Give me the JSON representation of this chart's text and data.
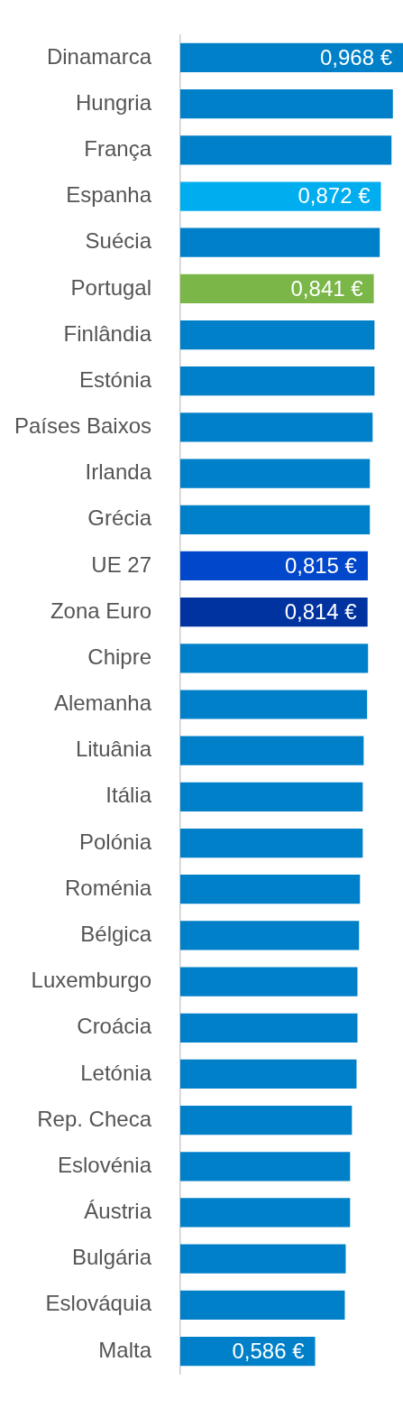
{
  "chart_data": {
    "type": "bar",
    "orientation": "horizontal",
    "categories": [
      "Dinamarca",
      "Hungria",
      "França",
      "Espanha",
      "Suécia",
      "Portugal",
      "Finlândia",
      "Estónia",
      "Países Baixos",
      "Irlanda",
      "Grécia",
      "UE 27",
      "Zona Euro",
      "Chipre",
      "Alemanha",
      "Lituânia",
      "Itália",
      "Polónia",
      "Roménia",
      "Bélgica",
      "Luxemburgo",
      "Croácia",
      "Letónia",
      "Rep. Checa",
      "Eslovénia",
      "Áustria",
      "Bulgária",
      "Eslováquia",
      "Malta"
    ],
    "values": [
      0.968,
      0.924,
      0.918,
      0.872,
      0.867,
      0.841,
      0.844,
      0.844,
      0.836,
      0.824,
      0.824,
      0.815,
      0.814,
      0.816,
      0.812,
      0.797,
      0.793,
      0.793,
      0.781,
      0.777,
      0.77,
      0.77,
      0.766,
      0.746,
      0.738,
      0.738,
      0.719,
      0.715,
      0.586
    ],
    "value_labels": [
      "0,968 €",
      null,
      null,
      "0,872 €",
      null,
      "0,841 €",
      null,
      null,
      null,
      null,
      null,
      "0,815 €",
      "0,814 €",
      null,
      null,
      null,
      null,
      null,
      null,
      null,
      null,
      null,
      null,
      null,
      null,
      null,
      null,
      null,
      "0,586 €"
    ],
    "colors": [
      "#0080c8",
      "#0080c8",
      "#0080c8",
      "#00aeef",
      "#0080c8",
      "#7ab648",
      "#0080c8",
      "#0080c8",
      "#0080c8",
      "#0080c8",
      "#0080c8",
      "#0047cc",
      "#0033a0",
      "#0080c8",
      "#0080c8",
      "#0080c8",
      "#0080c8",
      "#0080c8",
      "#0080c8",
      "#0080c8",
      "#0080c8",
      "#0080c8",
      "#0080c8",
      "#0080c8",
      "#0080c8",
      "#0080c8",
      "#0080c8",
      "#0080c8",
      "#0080c8"
    ],
    "xlim": [
      0,
      0.968
    ],
    "grid": false,
    "legend": false
  }
}
